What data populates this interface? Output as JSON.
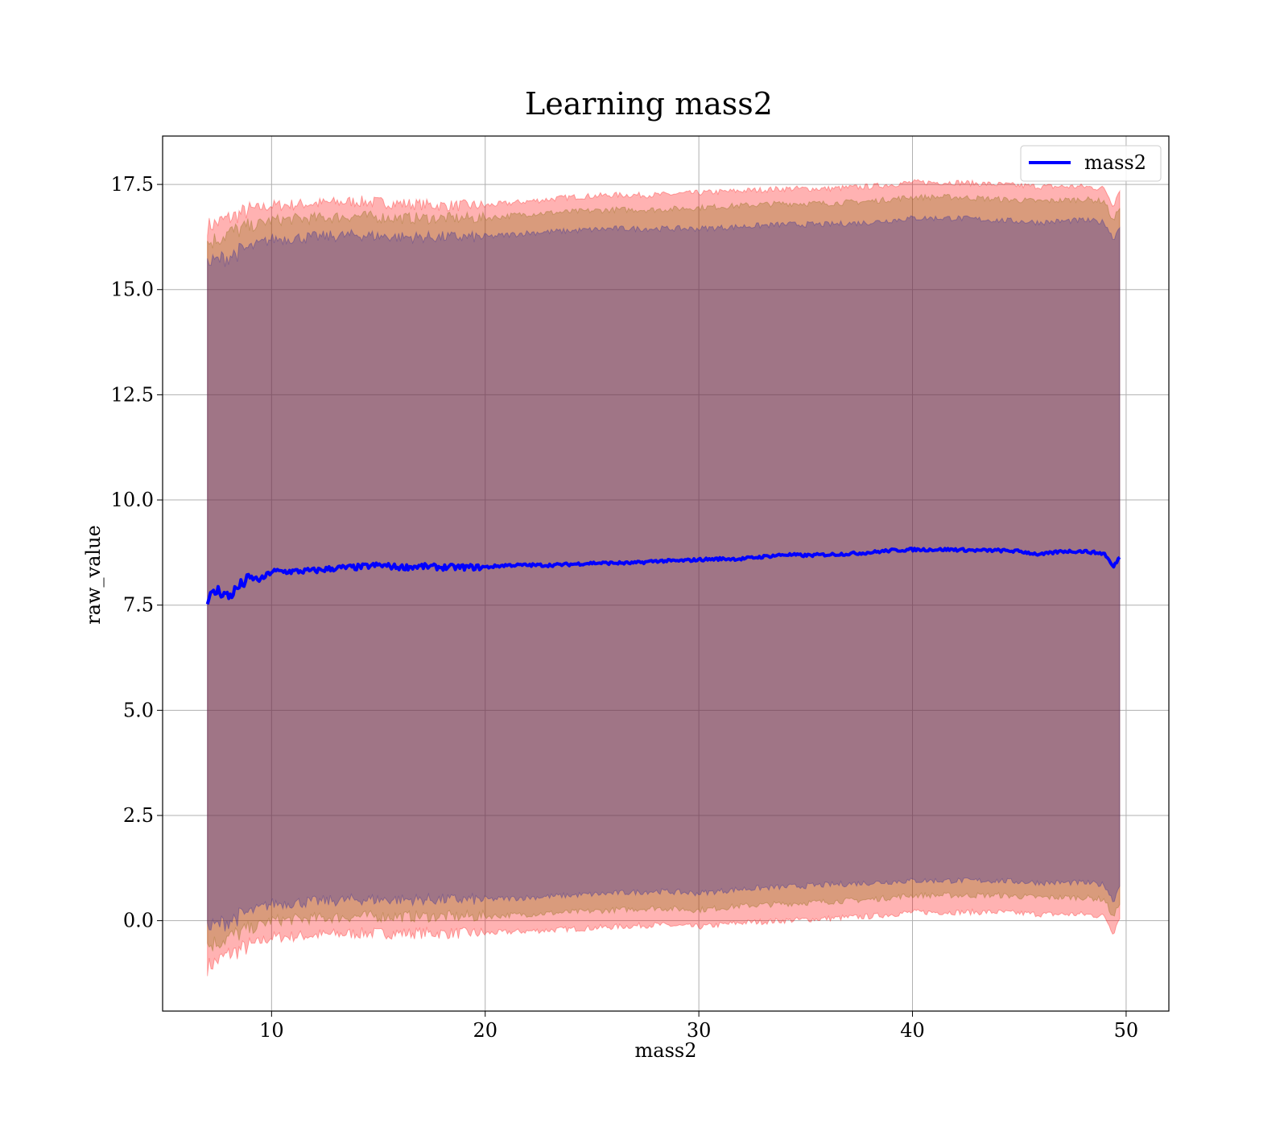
{
  "chart_data": {
    "type": "line",
    "title": "Learning mass2",
    "xlabel": "mass2",
    "ylabel": "raw_value",
    "xlim": [
      4.9,
      52.0
    ],
    "ylim": [
      -2.15,
      18.65
    ],
    "x_ticks": [
      10,
      20,
      30,
      40,
      50
    ],
    "x_tick_labels": [
      "10",
      "20",
      "30",
      "40",
      "50"
    ],
    "y_ticks": [
      0.0,
      2.5,
      5.0,
      7.5,
      10.0,
      12.5,
      15.0,
      17.5
    ],
    "y_tick_labels": [
      "0.0",
      "2.5",
      "5.0",
      "7.5",
      "10.0",
      "12.5",
      "15.0",
      "17.5"
    ],
    "grid": true,
    "legend": {
      "position": "upper-right",
      "entries": [
        "mass2"
      ]
    },
    "series": [
      {
        "name": "mass2",
        "color": "#0000ff",
        "x": [
          7.0,
          7.5,
          8.0,
          8.5,
          9.0,
          9.5,
          10.0,
          11.0,
          12.0,
          13.0,
          14.0,
          15.0,
          16.0,
          17.0,
          18.0,
          19.0,
          20.0,
          21.0,
          22.0,
          23.0,
          24.0,
          25.0,
          26.0,
          27.0,
          28.0,
          29.0,
          30.0,
          31.0,
          32.0,
          33.0,
          34.0,
          35.0,
          36.0,
          37.0,
          38.0,
          39.0,
          40.0,
          41.0,
          42.0,
          43.0,
          44.0,
          45.0,
          46.0,
          47.0,
          48.0,
          49.0,
          49.4,
          49.7
        ],
        "y": [
          7.65,
          7.85,
          7.7,
          7.95,
          8.15,
          8.1,
          8.3,
          8.3,
          8.32,
          8.38,
          8.4,
          8.45,
          8.4,
          8.42,
          8.4,
          8.4,
          8.4,
          8.45,
          8.45,
          8.45,
          8.47,
          8.5,
          8.5,
          8.5,
          8.55,
          8.55,
          8.58,
          8.6,
          8.6,
          8.65,
          8.7,
          8.68,
          8.7,
          8.72,
          8.75,
          8.8,
          8.82,
          8.82,
          8.82,
          8.8,
          8.8,
          8.78,
          8.7,
          8.78,
          8.78,
          8.72,
          8.4,
          8.65
        ]
      }
    ],
    "bands": [
      {
        "color": "#ff0000",
        "opacity": 0.3,
        "x": [
          7.0,
          8.0,
          9.0,
          10.0,
          12.0,
          14.0,
          16.0,
          18.0,
          20.0,
          22.0,
          24.0,
          26.0,
          28.0,
          30.0,
          32.0,
          34.0,
          36.0,
          38.0,
          40.0,
          42.0,
          44.0,
          46.0,
          48.0,
          49.0,
          49.4,
          49.7
        ],
        "upper": [
          16.5,
          16.7,
          16.9,
          17.0,
          17.05,
          17.1,
          17.05,
          17.0,
          17.0,
          17.1,
          17.2,
          17.25,
          17.25,
          17.3,
          17.35,
          17.4,
          17.4,
          17.45,
          17.55,
          17.55,
          17.5,
          17.45,
          17.45,
          17.4,
          17.0,
          17.4
        ],
        "lower": [
          -1.1,
          -0.8,
          -0.6,
          -0.4,
          -0.35,
          -0.3,
          -0.3,
          -0.3,
          -0.3,
          -0.25,
          -0.2,
          -0.15,
          -0.1,
          -0.15,
          -0.05,
          0.0,
          0.05,
          0.1,
          0.2,
          0.2,
          0.2,
          0.15,
          0.15,
          0.1,
          -0.3,
          0.1
        ]
      },
      {
        "color": "#806600",
        "opacity": 0.3,
        "x": [
          7.0,
          8.0,
          9.0,
          10.0,
          12.0,
          14.0,
          16.0,
          18.0,
          20.0,
          22.0,
          24.0,
          26.0,
          28.0,
          30.0,
          32.0,
          34.0,
          36.0,
          38.0,
          40.0,
          42.0,
          44.0,
          46.0,
          48.0,
          49.0,
          49.4,
          49.7
        ],
        "upper": [
          16.1,
          16.35,
          16.5,
          16.65,
          16.7,
          16.75,
          16.7,
          16.7,
          16.7,
          16.8,
          16.85,
          16.9,
          16.9,
          16.95,
          17.0,
          17.05,
          17.05,
          17.1,
          17.2,
          17.2,
          17.15,
          17.1,
          17.15,
          17.1,
          16.6,
          17.0
        ],
        "lower": [
          -0.6,
          -0.4,
          -0.2,
          0.0,
          0.05,
          0.1,
          0.1,
          0.1,
          0.1,
          0.15,
          0.2,
          0.25,
          0.3,
          0.25,
          0.35,
          0.4,
          0.45,
          0.5,
          0.6,
          0.6,
          0.6,
          0.55,
          0.55,
          0.5,
          0.05,
          0.45
        ]
      },
      {
        "color": "#1f1f9f",
        "opacity": 0.3,
        "x": [
          7.0,
          8.0,
          9.0,
          10.0,
          12.0,
          14.0,
          16.0,
          18.0,
          20.0,
          22.0,
          24.0,
          26.0,
          28.0,
          30.0,
          32.0,
          34.0,
          36.0,
          38.0,
          40.0,
          42.0,
          44.0,
          46.0,
          48.0,
          49.0,
          49.4,
          49.7
        ],
        "upper": [
          15.6,
          15.8,
          16.0,
          16.2,
          16.25,
          16.3,
          16.25,
          16.25,
          16.25,
          16.35,
          16.4,
          16.45,
          16.45,
          16.45,
          16.5,
          16.55,
          16.55,
          16.6,
          16.7,
          16.7,
          16.65,
          16.6,
          16.65,
          16.6,
          16.2,
          16.5
        ],
        "lower": [
          -0.2,
          0.0,
          0.2,
          0.4,
          0.45,
          0.5,
          0.5,
          0.5,
          0.5,
          0.55,
          0.6,
          0.65,
          0.7,
          0.65,
          0.75,
          0.8,
          0.85,
          0.9,
          0.95,
          0.95,
          0.95,
          0.9,
          0.9,
          0.85,
          0.45,
          0.85
        ]
      }
    ]
  }
}
